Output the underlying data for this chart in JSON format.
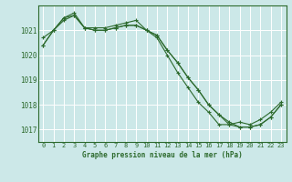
{
  "title": "Graphe pression niveau de la mer (hPa)",
  "background_color": "#cce8e8",
  "grid_color": "#ffffff",
  "line_color": "#2d6a2d",
  "marker_color": "#2d6a2d",
  "ylim": [
    1016.5,
    1022.0
  ],
  "xlim": [
    -0.5,
    23.5
  ],
  "yticks": [
    1017,
    1018,
    1019,
    1020,
    1021
  ],
  "xticks": [
    0,
    1,
    2,
    3,
    4,
    5,
    6,
    7,
    8,
    9,
    10,
    11,
    12,
    13,
    14,
    15,
    16,
    17,
    18,
    19,
    20,
    21,
    22,
    23
  ],
  "series1": [
    1020.4,
    1021.0,
    1021.5,
    1021.6,
    1021.1,
    1021.0,
    1021.0,
    1021.1,
    1021.2,
    1021.2,
    1021.0,
    1020.8,
    1020.2,
    1019.7,
    1019.1,
    1018.6,
    1018.0,
    1017.6,
    1017.3,
    1017.1,
    1017.1,
    1017.2,
    1017.5,
    1018.0
  ],
  "series2": [
    1020.4,
    1021.0,
    1021.4,
    1021.6,
    1021.1,
    1021.0,
    1021.0,
    1021.1,
    1021.2,
    1021.2,
    1021.0,
    1020.8,
    1020.2,
    1019.7,
    1019.1,
    1018.6,
    1018.0,
    1017.6,
    1017.2,
    1017.1,
    1017.1,
    1017.2,
    1017.5,
    1018.0
  ],
  "series3": [
    1020.7,
    1021.0,
    1021.5,
    1021.7,
    1021.1,
    1021.1,
    1021.1,
    1021.2,
    1021.3,
    1021.4,
    1021.0,
    1020.7,
    1020.0,
    1019.3,
    1018.7,
    1018.1,
    1017.7,
    1017.2,
    1017.2,
    1017.3,
    1017.2,
    1017.4,
    1017.7,
    1018.1
  ],
  "lw": 0.8,
  "ms": 3.5,
  "tick_fontsize": 5.0,
  "label_fontsize": 5.5
}
